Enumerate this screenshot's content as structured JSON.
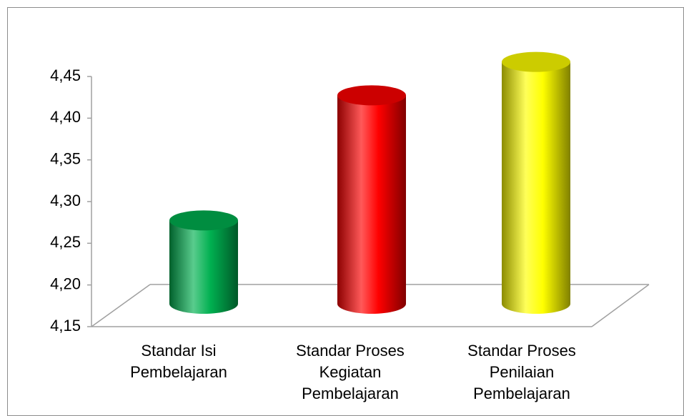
{
  "chart_data": {
    "type": "bar3d",
    "categories": [
      "Standar Isi\nPembelajaran",
      "Standar Proses\nKegiatan\nPembelajaran",
      "Standar Proses\nPenilaian\nPembelajaran"
    ],
    "values": [
      4.25,
      4.4,
      4.44
    ],
    "colors": [
      "#00b050",
      "#ff0000",
      "#ffff00"
    ],
    "ylim": [
      4.15,
      4.45
    ],
    "yticks": [
      {
        "value": 4.15,
        "label": "4,15"
      },
      {
        "value": 4.2,
        "label": "4,20"
      },
      {
        "value": 4.25,
        "label": "4,25"
      },
      {
        "value": 4.3,
        "label": "4,30"
      },
      {
        "value": 4.35,
        "label": "4,35"
      },
      {
        "value": 4.4,
        "label": "4,40"
      },
      {
        "value": 4.45,
        "label": "4,45"
      }
    ]
  }
}
